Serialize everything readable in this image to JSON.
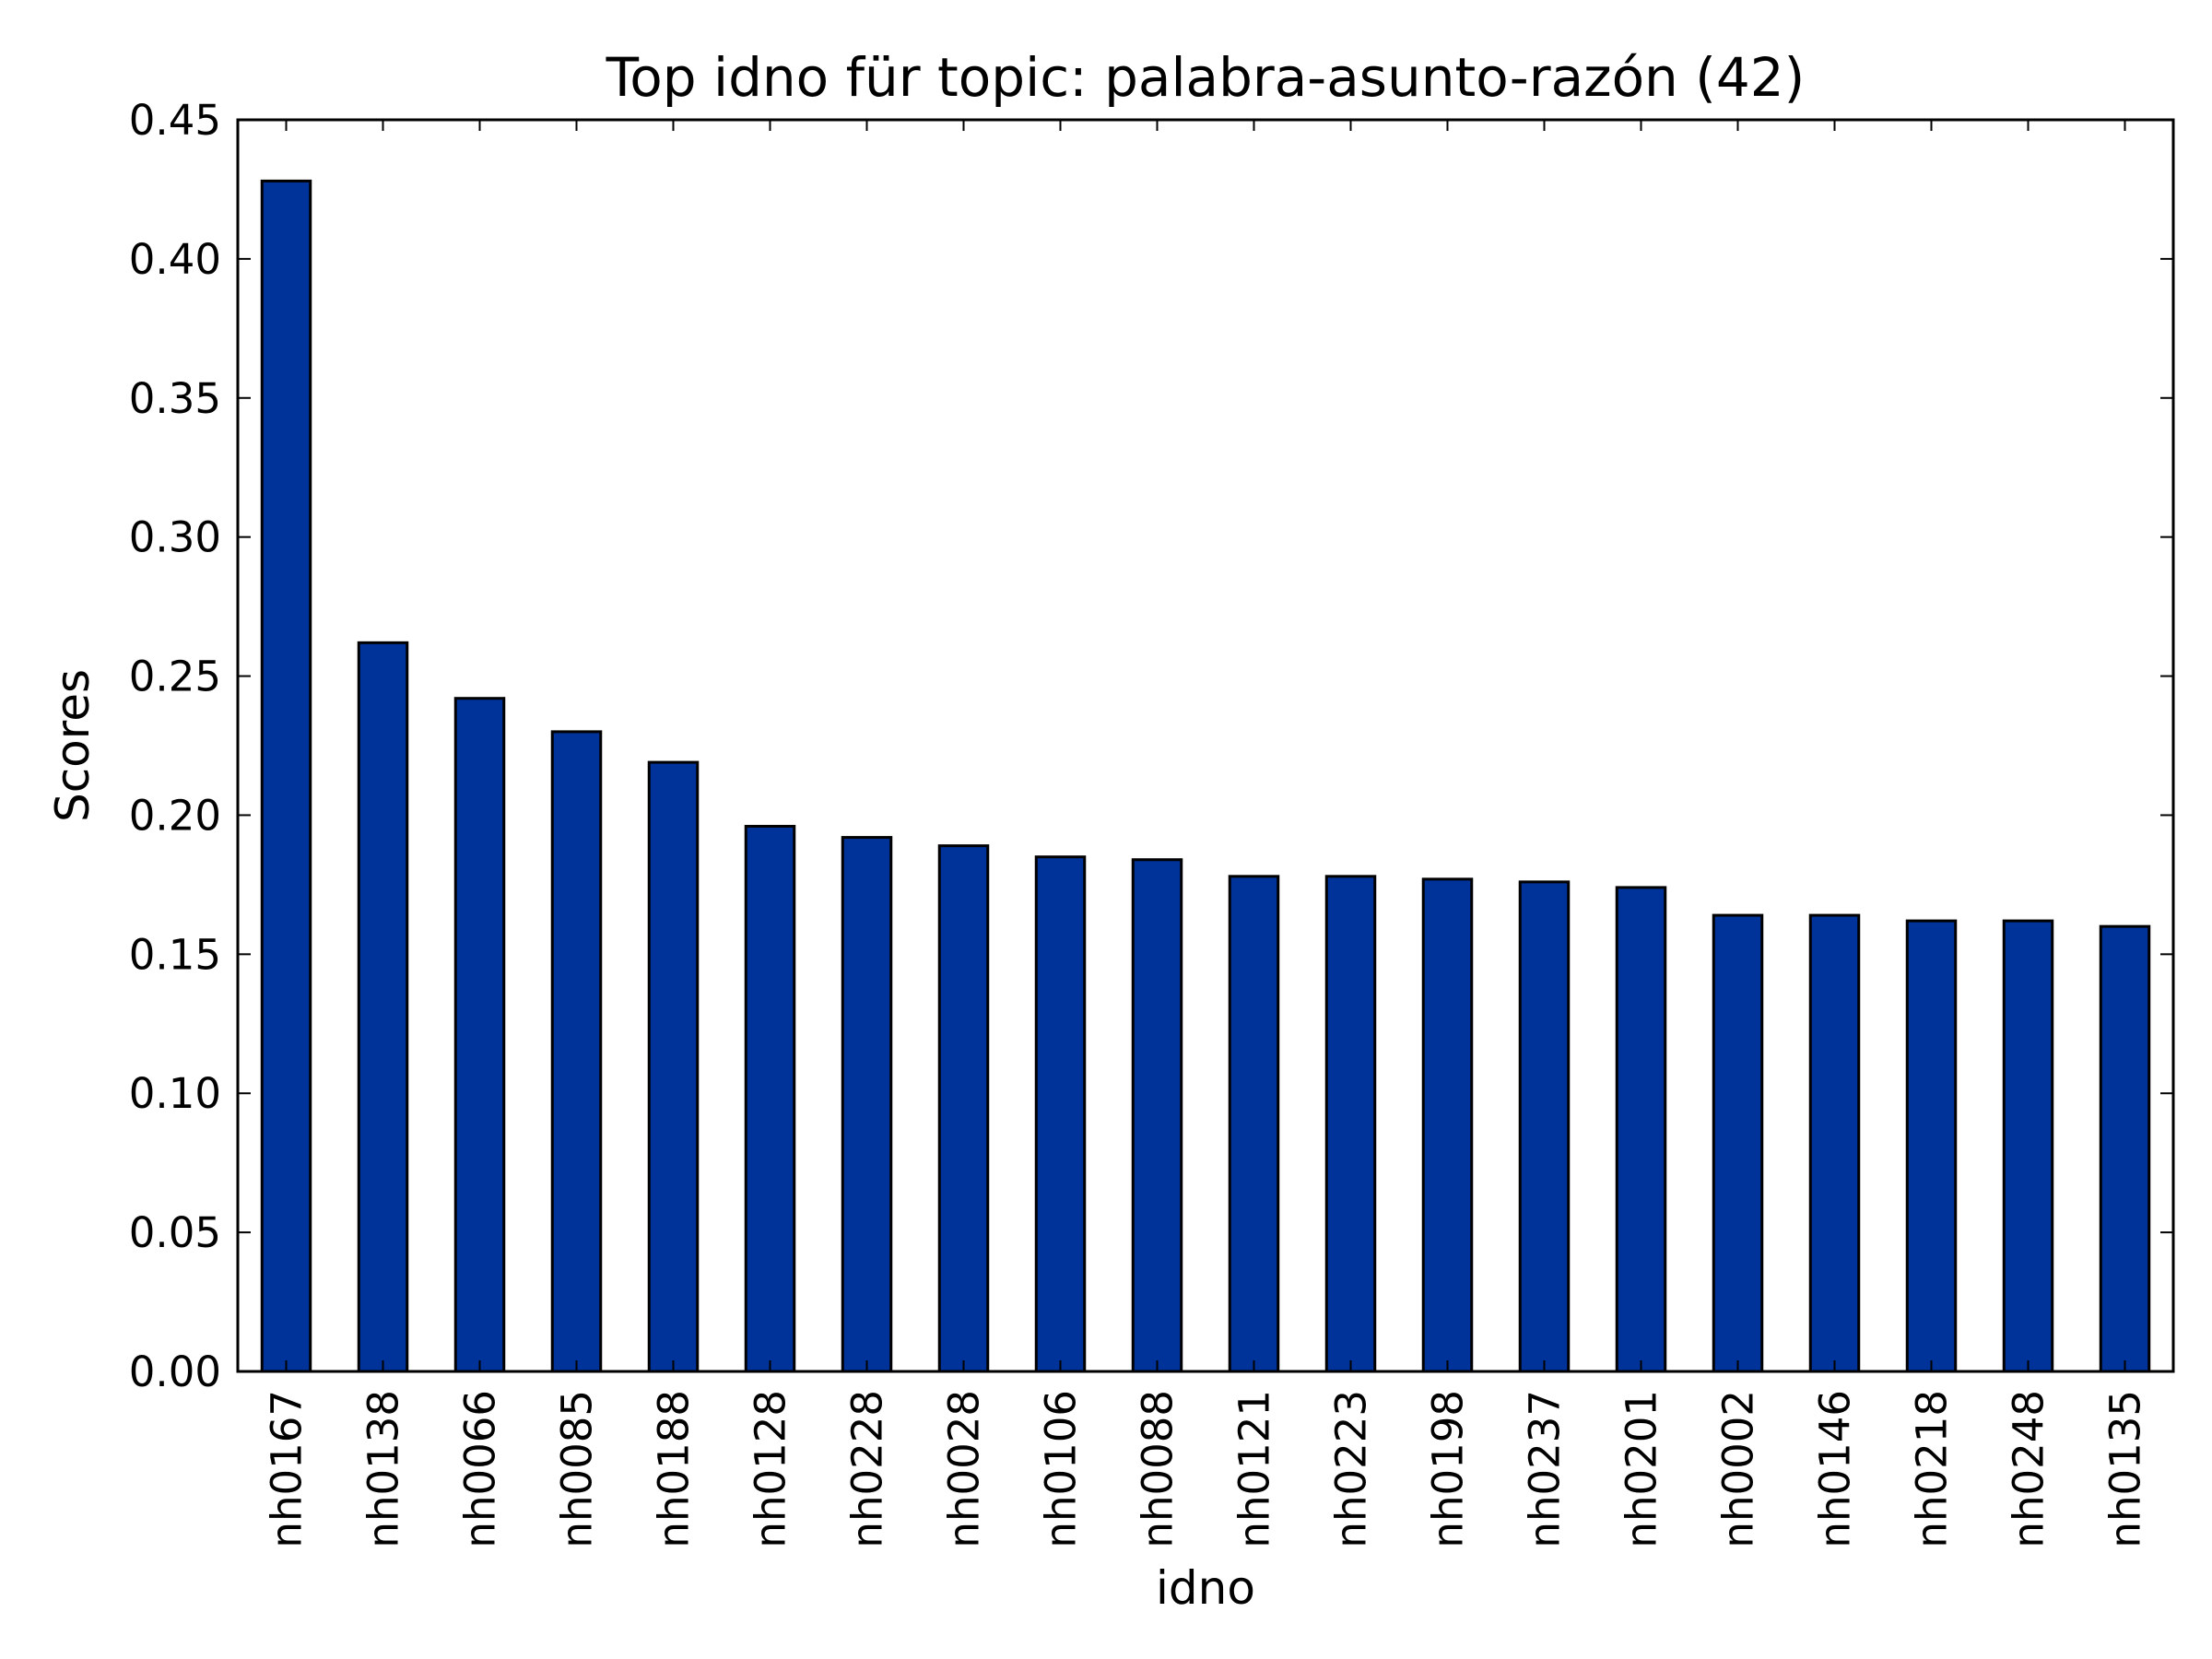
{
  "chart_data": {
    "type": "bar",
    "title": "Top idno für topic: palabra-asunto-razón (42)",
    "xlabel": "idno",
    "ylabel": "Scores",
    "ylim": [
      0,
      0.45
    ],
    "yticks": [
      "0.00",
      "0.05",
      "0.10",
      "0.15",
      "0.20",
      "0.25",
      "0.30",
      "0.35",
      "0.40",
      "0.45"
    ],
    "categories": [
      "nh0167",
      "nh0138",
      "nh0066",
      "nh0085",
      "nh0188",
      "nh0128",
      "nh0228",
      "nh0028",
      "nh0106",
      "nh0088",
      "nh0121",
      "nh0223",
      "nh0198",
      "nh0237",
      "nh0201",
      "nh0002",
      "nh0146",
      "nh0218",
      "nh0248",
      "nh0135"
    ],
    "values": [
      0.428,
      0.262,
      0.242,
      0.23,
      0.219,
      0.196,
      0.192,
      0.189,
      0.185,
      0.184,
      0.178,
      0.178,
      0.177,
      0.176,
      0.174,
      0.164,
      0.164,
      0.162,
      0.162,
      0.16
    ],
    "bar_color": "#003399",
    "edge_color": "#000000",
    "grid": false,
    "legend": false
  }
}
